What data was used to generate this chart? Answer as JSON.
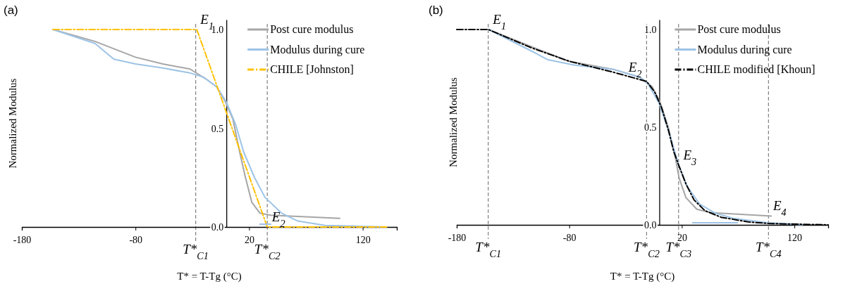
{
  "chart_data": [
    {
      "type": "line",
      "title": "(a)",
      "xlabel": "T* = T-Tg (°C)",
      "ylabel": "Normalized Modulus",
      "xlim": [
        -180,
        150
      ],
      "ylim": [
        0,
        1.05
      ],
      "xticks": [
        -180,
        -80,
        20,
        120
      ],
      "yticks": [
        {
          "value": 0,
          "label": "0.0"
        },
        {
          "value": 0.5,
          "label": "0.5"
        },
        {
          "value": 1,
          "label": "1.0"
        }
      ],
      "grid": false,
      "legend": "top right",
      "marker": "none",
      "series": [
        {
          "name": "Post cure modulus",
          "color": "#a6a6a6",
          "line_style": "solid",
          "x": [
            -152.6,
            -115.7,
            -80,
            -56,
            -32,
            -18,
            -8.6,
            -1.4,
            5.7,
            11.7,
            16.4,
            22.4,
            29.5,
            39,
            62.9,
            99.8
          ],
          "values": [
            1,
            0.94,
            0.86,
            0.826,
            0.8,
            0.75,
            0.71,
            0.64,
            0.547,
            0.38,
            0.26,
            0.125,
            0.07,
            0.06,
            0.053,
            0.044
          ]
        },
        {
          "name": "Modulus during cure",
          "color": "#9dc3e6",
          "line_style": "solid",
          "x": [
            -152.6,
            -115.7,
            -99,
            -80,
            -56,
            -32,
            -20.5,
            -8.6,
            -0.2,
            8.1,
            15.2,
            24.8,
            34,
            48.6,
            62.9,
            86.7,
            141
          ],
          "values": [
            1,
            0.93,
            0.85,
            0.826,
            0.805,
            0.78,
            0.76,
            0.71,
            0.635,
            0.52,
            0.38,
            0.25,
            0.15,
            0.07,
            0.03,
            0.008,
            0
          ]
        },
        {
          "name": "CHILE [Johnston]",
          "color": "#ffc000",
          "line_style": "dashdot",
          "x": [
            -152.6,
            -26,
            36,
            141
          ],
          "values": [
            1,
            1,
            0,
            0
          ]
        },
        {
          "color": "#9dc3e6",
          "line_style": "solid",
          "x": [
            29.5,
            39
          ],
          "values": [
            0.014,
            0.014
          ]
        }
      ],
      "ref_lines": [
        {
          "axis": "x",
          "value": -27,
          "label": "T*$_{C1}$",
          "color": "#808080",
          "line_style": "dashed"
        },
        {
          "axis": "x",
          "value": 36,
          "label": "T*$_{C2}$",
          "color": "#808080",
          "line_style": "dashed"
        }
      ],
      "annotations": [
        {
          "text": "E$_{1}$",
          "x": -27,
          "y": 1
        },
        {
          "text": "E$_{2}$",
          "x": 36,
          "y": 0
        }
      ]
    },
    {
      "type": "line",
      "title": "(b)",
      "xlabel": "T* = T-Tg (°C)",
      "ylabel": "Normalized Modulus",
      "xlim": [
        -180,
        150
      ],
      "ylim": [
        0,
        1.05
      ],
      "xticks": [
        -180,
        -80,
        20,
        120
      ],
      "yticks": [
        {
          "value": 0,
          "label": "0.0"
        },
        {
          "value": 0.5,
          "label": "0.5"
        },
        {
          "value": 1,
          "label": "1.0"
        }
      ],
      "grid": false,
      "legend": "top right",
      "marker": "none",
      "series": [
        {
          "name": "Post cure modulus",
          "color": "#a6a6a6",
          "line_style": "solid",
          "x": [
            -152,
            -104,
            -80,
            -41,
            -17,
            -6.3,
            0.9,
            8,
            14,
            17.6,
            23.6,
            33.3,
            45.3,
            99.5
          ],
          "values": [
            1,
            0.89,
            0.837,
            0.796,
            0.755,
            0.707,
            0.624,
            0.5,
            0.35,
            0.24,
            0.14,
            0.08,
            0.063,
            0.045
          ]
        },
        {
          "name": "Modulus during cure",
          "color": "#9dc3e6",
          "line_style": "solid",
          "x": [
            -152,
            -113.7,
            -99,
            -75,
            -41,
            -17,
            -9.9,
            -0.3,
            8,
            17.1,
            24.8,
            35.7,
            50,
            67,
            96,
            127
          ],
          "values": [
            1,
            0.89,
            0.845,
            0.817,
            0.796,
            0.755,
            0.72,
            0.624,
            0.486,
            0.307,
            0.197,
            0.107,
            0.059,
            0.032,
            0.011,
            0.001
          ]
        },
        {
          "name": "CHILE modified [Khoun]",
          "color": "#000000",
          "line_style": "dashdot",
          "x": [
            -180,
            -152,
            -113.7,
            -80,
            -41.4,
            -11.3,
            -4.1,
            2,
            8,
            12.8,
            17.1,
            23.6,
            30.8,
            40.5,
            54.9,
            79,
            97,
            150
          ],
          "values": [
            1,
            1,
            0.906,
            0.837,
            0.782,
            0.734,
            0.68,
            0.6,
            0.486,
            0.376,
            0.307,
            0.21,
            0.128,
            0.073,
            0.039,
            0.015,
            0.007,
            0
          ]
        },
        {
          "color": "#9dc3e6",
          "line_style": "solid",
          "x": [
            29.6,
            69.4
          ],
          "values": [
            0.011,
            0.011
          ]
        }
      ],
      "ref_lines": [
        {
          "axis": "x",
          "value": -152,
          "label": "T*$_{C1}$",
          "color": "#808080",
          "line_style": "dashed"
        },
        {
          "axis": "x",
          "value": -11.3,
          "label": "T*$_{C2}$",
          "color": "#808080",
          "line_style": "dashed"
        },
        {
          "axis": "x",
          "value": 17.1,
          "label": "T*$_{C3}$",
          "color": "#808080",
          "line_style": "dashed"
        },
        {
          "axis": "x",
          "value": 97,
          "label": "T*$_{C4}$",
          "color": "#808080",
          "line_style": "dashed"
        }
      ],
      "annotations": [
        {
          "text": "E$_{1}$",
          "x": -152,
          "y": 1
        },
        {
          "text": "E$_{2}$",
          "x": -11.3,
          "y": 0.734
        },
        {
          "text": "E$_{3}$",
          "x": 17.1,
          "y": 0.307
        },
        {
          "text": "E$_{4}$",
          "x": 97,
          "y": 0.045
        }
      ]
    }
  ]
}
